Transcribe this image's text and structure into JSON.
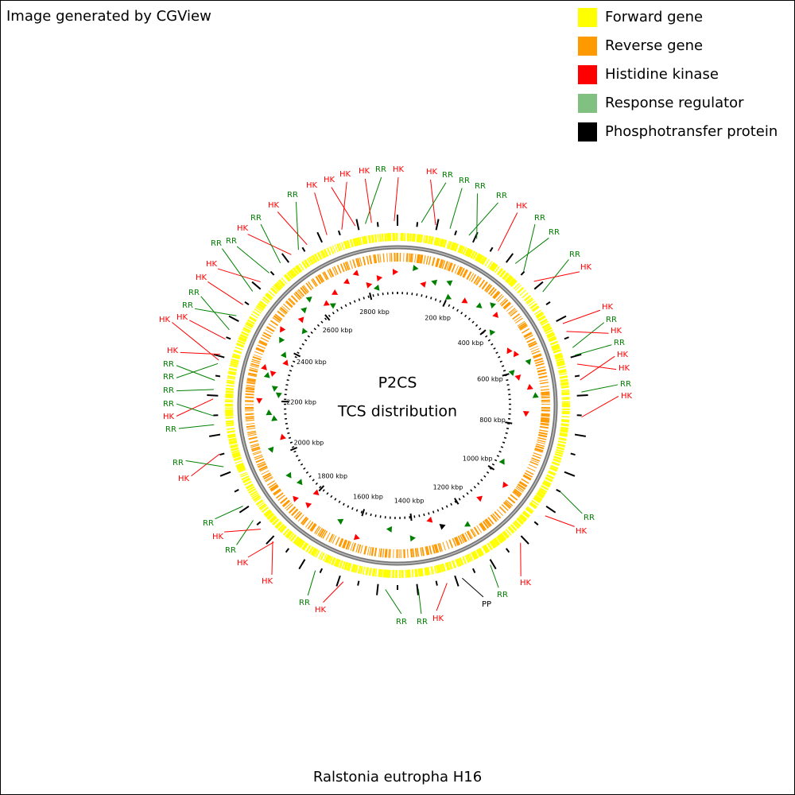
{
  "header": {
    "credit": "Image generated by CGView"
  },
  "legend": [
    {
      "label": "Forward gene",
      "color": "#ffff00"
    },
    {
      "label": "Reverse gene",
      "color": "#ff9900"
    },
    {
      "label": "Histidine kinase",
      "color": "#ff0000"
    },
    {
      "label": "Response regulator",
      "color": "#80c080"
    },
    {
      "label": "Phosphotransfer protein",
      "color": "#000000"
    }
  ],
  "center": {
    "title": "P2CS",
    "subtitle": "TCS distribution"
  },
  "ticks": [
    "200 kbp",
    "400 kbp",
    "600 kbp",
    "800 kbp",
    "1000 kbp",
    "1200 kbp",
    "1400 kbp",
    "1600 kbp",
    "1800 kbp",
    "2000 kbp",
    "2200 kbp",
    "2400 kbp",
    "2600 kbp",
    "2800 kbp"
  ],
  "features": [
    {
      "label": "RR",
      "color": "#008000"
    },
    {
      "label": "HK",
      "color": "#ff0000"
    },
    {
      "label": "HK",
      "color": "#ff0000"
    },
    {
      "label": "RR",
      "color": "#008000"
    },
    {
      "label": "RR",
      "color": "#008000"
    },
    {
      "label": "RR",
      "color": "#008000"
    },
    {
      "label": "RR",
      "color": "#008000"
    },
    {
      "label": "HK",
      "color": "#ff0000"
    },
    {
      "label": "RR",
      "color": "#008000"
    },
    {
      "label": "RR",
      "color": "#008000"
    },
    {
      "label": "RR",
      "color": "#008000"
    },
    {
      "label": "HK",
      "color": "#ff0000"
    },
    {
      "label": "HK",
      "color": "#ff0000"
    },
    {
      "label": "RR",
      "color": "#008000"
    },
    {
      "label": "HK",
      "color": "#ff0000"
    },
    {
      "label": "RR",
      "color": "#008000"
    },
    {
      "label": "HK",
      "color": "#ff0000"
    },
    {
      "label": "HK",
      "color": "#ff0000"
    },
    {
      "label": "RR",
      "color": "#008000"
    },
    {
      "label": "HK",
      "color": "#ff0000"
    },
    {
      "label": "RR",
      "color": "#008000"
    },
    {
      "label": "HK",
      "color": "#ff0000"
    },
    {
      "label": "HK",
      "color": "#ff0000"
    },
    {
      "label": "RR",
      "color": "#008000"
    },
    {
      "label": "PP",
      "color": "#000000"
    },
    {
      "label": "HK",
      "color": "#ff0000"
    },
    {
      "label": "RR",
      "color": "#008000"
    },
    {
      "label": "RR",
      "color": "#008000"
    },
    {
      "label": "HK",
      "color": "#ff0000"
    },
    {
      "label": "RR",
      "color": "#008000"
    },
    {
      "label": "HK",
      "color": "#ff0000"
    },
    {
      "label": "HK",
      "color": "#ff0000"
    },
    {
      "label": "RR",
      "color": "#008000"
    },
    {
      "label": "HK",
      "color": "#ff0000"
    },
    {
      "label": "RR",
      "color": "#008000"
    },
    {
      "label": "HK",
      "color": "#ff0000"
    },
    {
      "label": "RR",
      "color": "#008000"
    },
    {
      "label": "RR",
      "color": "#008000"
    },
    {
      "label": "HK",
      "color": "#ff0000"
    },
    {
      "label": "RR",
      "color": "#008000"
    },
    {
      "label": "RR",
      "color": "#008000"
    },
    {
      "label": "RR",
      "color": "#008000"
    },
    {
      "label": "RR",
      "color": "#008000"
    },
    {
      "label": "HK",
      "color": "#ff0000"
    },
    {
      "label": "HK",
      "color": "#ff0000"
    },
    {
      "label": "HK",
      "color": "#ff0000"
    },
    {
      "label": "RR",
      "color": "#008000"
    },
    {
      "label": "RR",
      "color": "#008000"
    },
    {
      "label": "HK",
      "color": "#ff0000"
    },
    {
      "label": "HK",
      "color": "#ff0000"
    },
    {
      "label": "RR",
      "color": "#008000"
    },
    {
      "label": "RR",
      "color": "#008000"
    },
    {
      "label": "HK",
      "color": "#ff0000"
    },
    {
      "label": "RR",
      "color": "#008000"
    },
    {
      "label": "HK",
      "color": "#ff0000"
    },
    {
      "label": "RR",
      "color": "#008000"
    },
    {
      "label": "HK",
      "color": "#ff0000"
    },
    {
      "label": "HK",
      "color": "#ff0000"
    },
    {
      "label": "HK",
      "color": "#ff0000"
    },
    {
      "label": "HK",
      "color": "#ff0000"
    }
  ],
  "footer": {
    "organism": "Ralstonia eutropha H16"
  }
}
